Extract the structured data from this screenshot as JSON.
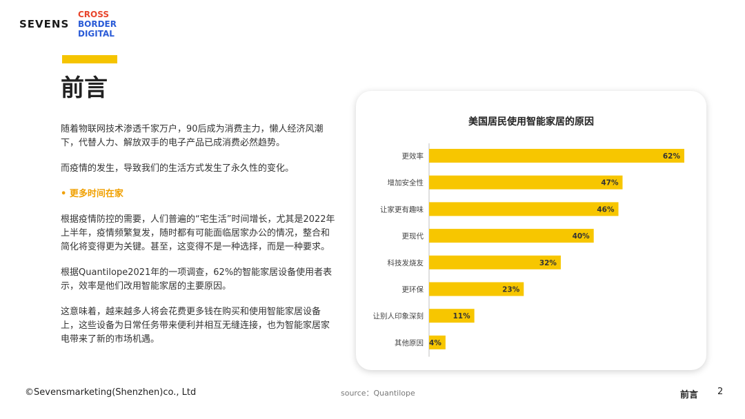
{
  "brand": {
    "name": "SEVENS",
    "sub_lines": [
      "CROSS",
      "BORDER",
      "DIGITAL"
    ]
  },
  "header": {
    "title": "前言"
  },
  "body": {
    "para1": "随着物联网技术渗透千家万户，90后成为消费主力，懒人经济风潮下，代替人力、解放双手的电子产品已成消费必然趋势。",
    "para2": "而疫情的发生，导致我们的生活方式发生了永久性的变化。",
    "subheading": "• 更多时间在家",
    "para3": "根据疫情防控的需要，人们普遍的“宅生活”时间增长，尤其是2022年上半年，疫情频繁复发，随时都有可能面临居家办公的情况，整合和简化将变得更为关键。甚至，这变得不是一种选择，而是一种要求。",
    "para4": "根据Quantilope2021年的一项调查，62%的智能家居设备使用者表示，效率是他们改用智能家居的主要原因。",
    "para5": "这意味着，越来越多人将会花费更多钱在购买和使用智能家居设备上，这些设备为日常任务带来便利并相互无缝连接，也为智能家居家电带来了新的市场机遇。"
  },
  "chart_data": {
    "type": "bar",
    "orientation": "horizontal",
    "title": "美国居民使用智能家居的原因",
    "categories": [
      "更效率",
      "增加安全性",
      "让家更有趣味",
      "更现代",
      "科技发烧友",
      "更环保",
      "让别人印象深刻",
      "其他原因"
    ],
    "values": [
      62,
      47,
      46,
      40,
      32,
      23,
      11,
      4
    ],
    "value_labels": [
      "62%",
      "47%",
      "46%",
      "40%",
      "32%",
      "23%",
      "11%",
      "4%"
    ],
    "xlim": [
      0,
      62
    ],
    "bar_color": "#f7c600",
    "grid": false
  },
  "footer": {
    "copyright": "©Sevensmarketing(Shenzhen)co., Ltd",
    "source": "source：Quantilope",
    "section": "前言",
    "page": "2"
  }
}
